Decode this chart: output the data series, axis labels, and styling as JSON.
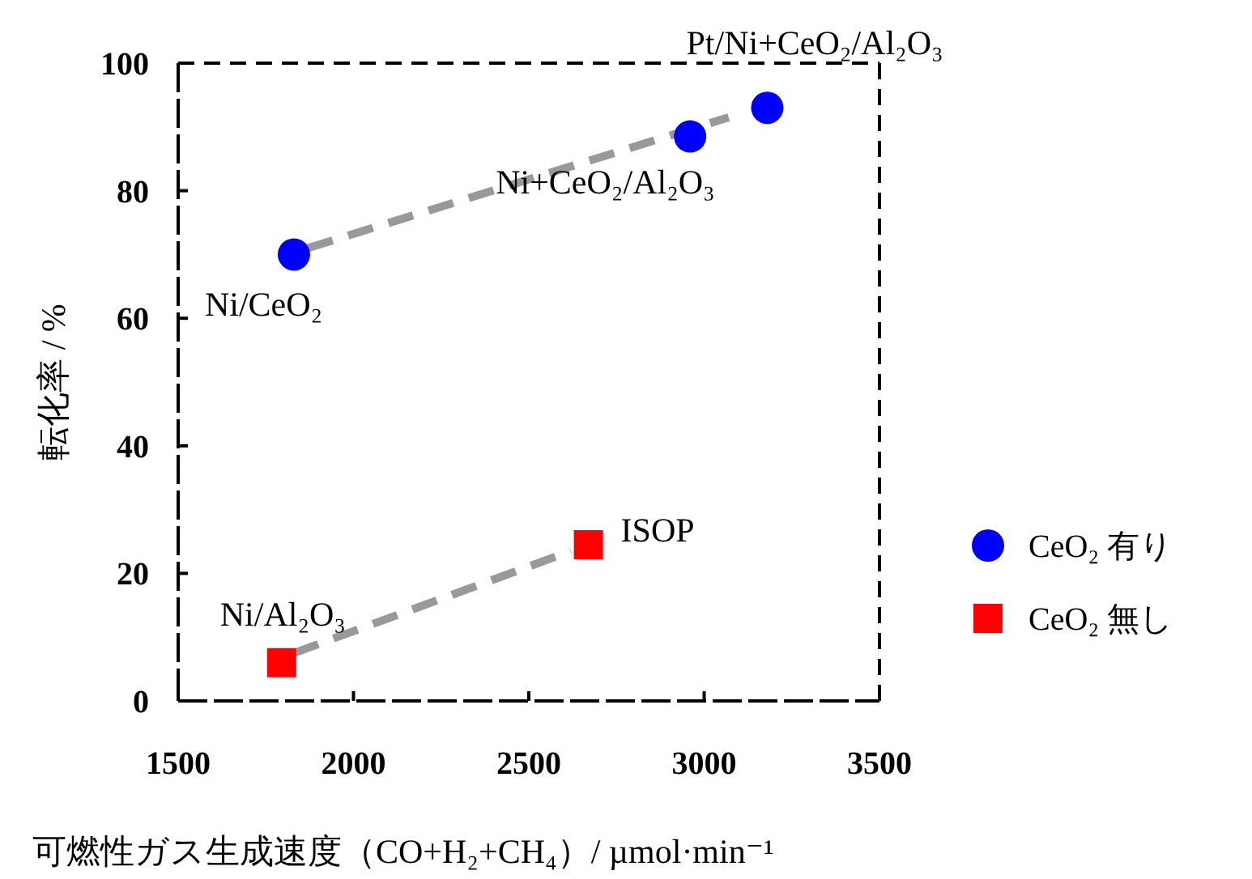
{
  "chart_data": {
    "type": "scatter",
    "xlabel": "可燃性ガス生成速度（CO+H₂+CH₄）/ µmol·min⁻¹",
    "ylabel": "転化率 / %",
    "xlim": [
      1500,
      3500
    ],
    "xticks": [
      1500,
      2000,
      2500,
      3000,
      3500
    ],
    "ylim": [
      0,
      100
    ],
    "yticks": [
      0,
      20,
      40,
      60,
      80,
      100
    ],
    "grid": false,
    "legend": "right",
    "series": [
      {
        "name": "CeO₂ 有り",
        "marker": "circle",
        "color": "#0000ff",
        "x": [
          1830,
          2960,
          3180
        ],
        "values": [
          70,
          88.5,
          93
        ]
      },
      {
        "name": "CeO₂ 無し",
        "marker": "square",
        "color": "#ff0000",
        "x": [
          1795,
          2670
        ],
        "values": [
          6,
          24.5
        ]
      },
      {
        "type": "line",
        "line_style": "dashed",
        "marker": "none",
        "color": "#999999",
        "x": [
          1870,
          3070
        ],
        "values": [
          71,
          91.5
        ]
      },
      {
        "type": "line",
        "line_style": "dashed",
        "marker": "none",
        "color": "#999999",
        "x": [
          1830,
          2620
        ],
        "values": [
          7.5,
          23.5
        ]
      }
    ],
    "annotations": [
      {
        "text": "Ni/CeO₂",
        "x": 1830,
        "y": 70
      },
      {
        "text": "Ni+CeO₂/Al₂O₃",
        "x": 2960,
        "y": 88.5
      },
      {
        "text": "Pt/Ni+CeO₂/Al₂O₃",
        "x": 3180,
        "y": 93
      },
      {
        "text": "Ni/Al₂O₃",
        "x": 1795,
        "y": 6
      },
      {
        "text": "ISOP",
        "x": 2670,
        "y": 24.5
      }
    ]
  }
}
